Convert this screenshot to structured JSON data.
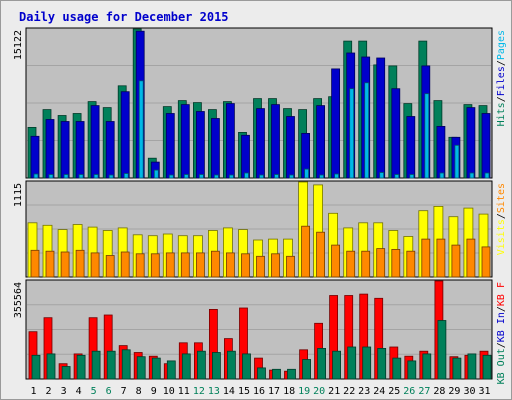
{
  "chart_data": {
    "type": "bar",
    "title": "Daily usage for December 2015",
    "categories": [
      "1",
      "2",
      "3",
      "4",
      "5",
      "6",
      "7",
      "8",
      "9",
      "10",
      "11",
      "12",
      "13",
      "14",
      "15",
      "16",
      "17",
      "18",
      "19",
      "20",
      "21",
      "22",
      "23",
      "24",
      "25",
      "26",
      "27",
      "28",
      "29",
      "30",
      "31"
    ],
    "weekend_days": [
      "5",
      "6",
      "12",
      "13",
      "19",
      "20",
      "26",
      "27"
    ],
    "panels": [
      {
        "id": "pages-files-hits",
        "ymax_label": "15122",
        "ylim": [
          0,
          15122
        ],
        "series": [
          {
            "name": "Hits",
            "values": [
              5100,
              6900,
              6300,
              6500,
              7700,
              7100,
              9300,
              15122,
              2000,
              7200,
              7800,
              7600,
              6900,
              7700,
              4600,
              8000,
              8000,
              7000,
              6900,
              8000,
              8200,
              13800,
              13800,
              11400,
              11300,
              7500,
              13800,
              7800,
              4100,
              7400,
              7300
            ]
          },
          {
            "name": "Files",
            "values": [
              4200,
              5900,
              5700,
              5700,
              7300,
              5700,
              8700,
              14800,
              1600,
              6500,
              7400,
              6700,
              6000,
              7500,
              4300,
              7000,
              7400,
              6200,
              4500,
              7300,
              11000,
              12600,
              12200,
              12100,
              9000,
              6200,
              11300,
              5200,
              4100,
              7100,
              6500
            ]
          },
          {
            "name": "Pages",
            "values": [
              400,
              350,
              350,
              350,
              350,
              300,
              450,
              9800,
              800,
              300,
              350,
              350,
              300,
              300,
              500,
              300,
              350,
              300,
              900,
              300,
              400,
              9000,
              9600,
              550,
              350,
              350,
              8500,
              500,
              3300,
              500,
              500
            ]
          }
        ],
        "legend": [
          {
            "label": "Pages",
            "color": "#00b8e8"
          },
          {
            "label": "Files",
            "color": "#0000cc"
          },
          {
            "label": "Hits",
            "color": "#00805a"
          }
        ]
      },
      {
        "id": "sites-visits",
        "ymax_label": "1115",
        "ylim": [
          0,
          1115
        ],
        "series": [
          {
            "name": "Visits",
            "values": [
              630,
              600,
              550,
              610,
              580,
              540,
              570,
              490,
              480,
              500,
              480,
              480,
              540,
              570,
              550,
              430,
              440,
              440,
              1115,
              1070,
              740,
              570,
              630,
              630,
              540,
              470,
              770,
              820,
              700,
              800,
              730
            ]
          },
          {
            "name": "Sites",
            "values": [
              310,
              300,
              290,
              310,
              280,
              250,
              290,
              270,
              270,
              280,
              280,
              280,
              300,
              280,
              270,
              240,
              270,
              240,
              590,
              520,
              370,
              300,
              300,
              330,
              320,
              300,
              440,
              440,
              370,
              440,
              350
            ]
          }
        ],
        "legend": [
          {
            "label": "Sites",
            "color": "#ff8800"
          },
          {
            "label": "Visits",
            "color": "#ffff00"
          }
        ]
      },
      {
        "id": "kb",
        "ymax_label": "355564",
        "ylim": [
          0,
          355564
        ],
        "series": [
          {
            "name": "KB F",
            "values": [
              170000,
              220000,
              55000,
              90000,
              220000,
              230000,
              120000,
              95000,
              82000,
              55000,
              130000,
              130000,
              250000,
              145000,
              255000,
              75000,
              32000,
              28000,
              105000,
              200000,
              300000,
              300000,
              305000,
              290000,
              115000,
              82000,
              100000,
              355564,
              80000,
              85000,
              100000
            ]
          },
          {
            "name": "KB In",
            "values": [
              0,
              0,
              0,
              0,
              0,
              0,
              0,
              0,
              0,
              0,
              0,
              0,
              0,
              0,
              0,
              0,
              0,
              0,
              0,
              0,
              0,
              0,
              0,
              0,
              0,
              0,
              0,
              0,
              0,
              0,
              0
            ]
          },
          {
            "name": "KB Out",
            "values": [
              85000,
              90000,
              45000,
              85000,
              100000,
              100000,
              105000,
              80000,
              75000,
              65000,
              90000,
              100000,
              95000,
              100000,
              90000,
              40000,
              35000,
              35000,
              70000,
              110000,
              100000,
              115000,
              115000,
              110000,
              75000,
              65000,
              90000,
              210000,
              75000,
              90000,
              85000
            ]
          }
        ],
        "legend": [
          {
            "label": "KB F",
            "color": "#ff0000"
          },
          {
            "label": "KB In",
            "color": "#0000cc"
          },
          {
            "label": "KB Out",
            "color": "#00805a"
          }
        ]
      }
    ]
  },
  "colors": {
    "title": "#0000cc",
    "plot_bg": "#c0c0c0",
    "frame_bg": "#ececec",
    "weekend_label": "#00805a",
    "weekday_label": "#000000"
  }
}
